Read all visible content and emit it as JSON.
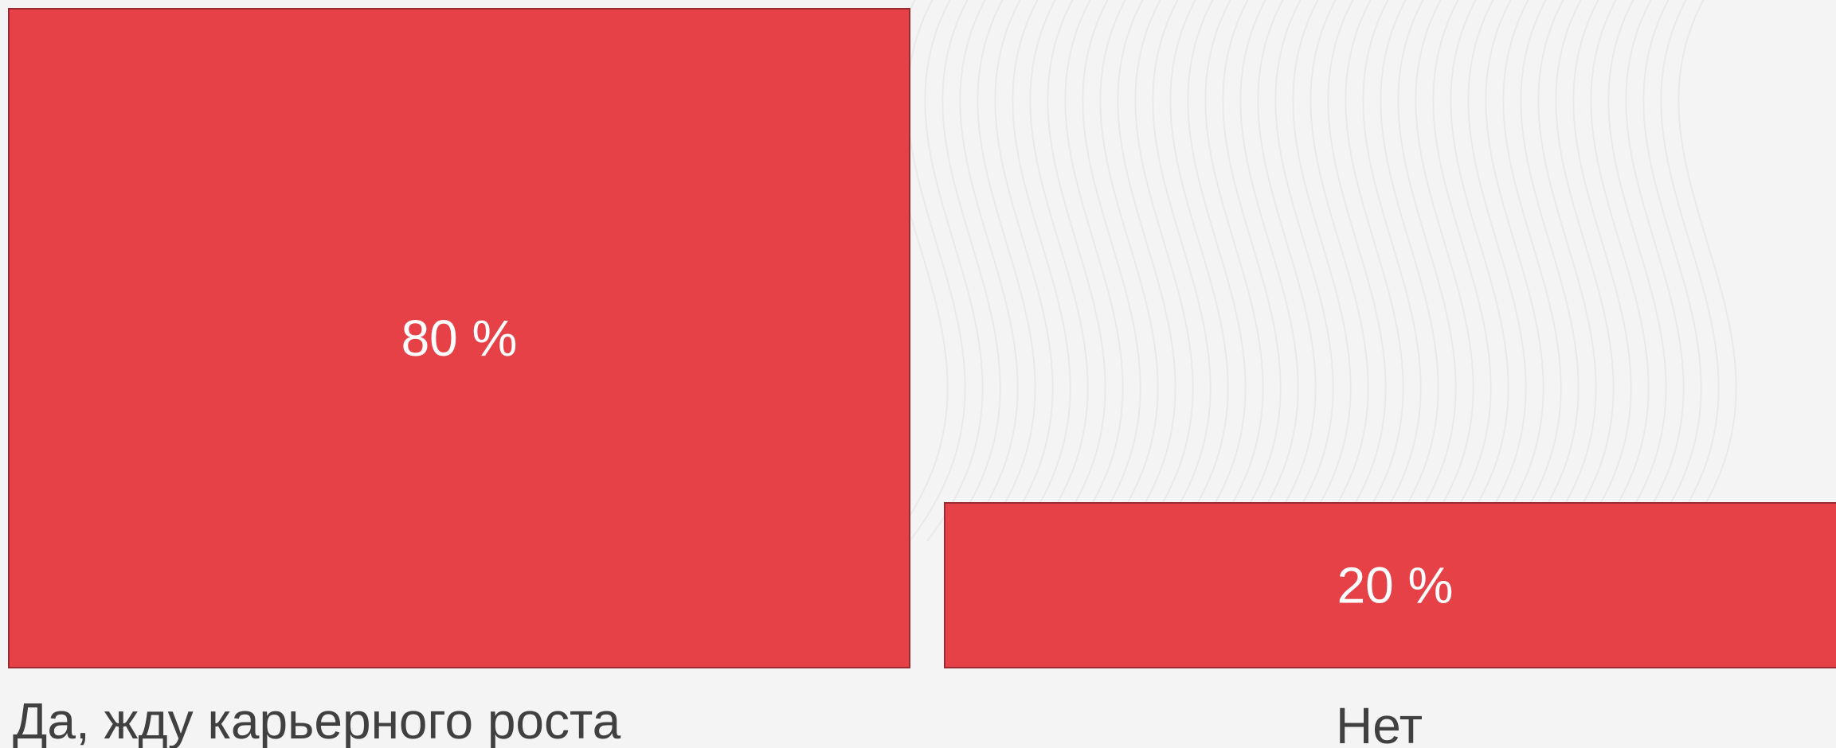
{
  "chart_data": {
    "type": "bar",
    "categories": [
      "Да, жду карьерного роста",
      "Нет"
    ],
    "values": [
      80,
      20
    ],
    "value_labels": [
      "80 %",
      "20 %"
    ],
    "unit": "%",
    "ylim": [
      0,
      80
    ],
    "grid": false,
    "legend": "none",
    "colors": {
      "bar_fill": "#e64147",
      "bar_stroke": "#9b2b30",
      "value_text": "#ffffff",
      "label_text": "#404040",
      "background": "#f4f4f4"
    }
  }
}
